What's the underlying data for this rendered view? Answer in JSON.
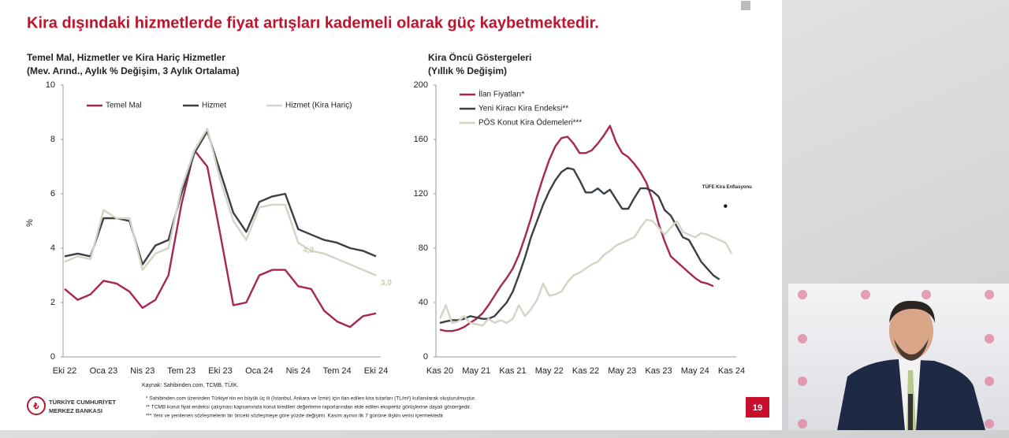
{
  "slide_title": "Kira dışındaki hizmetlerde fiyat artışları kademeli olarak güç kaybetmektedir.",
  "chart_data": [
    {
      "type": "line",
      "title": "Temel Mal, Hizmetler ve Kira Hariç Hizmetler",
      "subtitle": "(Mev. Arınd., Aylık % Değişim, 3 Aylık Ortalama)",
      "ylabel": "%",
      "source": "Kaynak: Sahibinden.com, TCMB, TÜİK.",
      "categories": [
        "Eki 22",
        null,
        null,
        "Oca 23",
        null,
        null,
        "Nis 23",
        null,
        null,
        "Tem 23",
        null,
        null,
        "Eki 23",
        null,
        null,
        "Oca 24",
        null,
        null,
        "Nis 24",
        null,
        null,
        "Tem 24",
        null,
        null,
        "Eki 24"
      ],
      "ylim": [
        0,
        10
      ],
      "yticks": [
        0,
        2,
        4,
        6,
        8,
        10
      ],
      "legend": "top",
      "series": [
        {
          "name": "Temel Mal",
          "color": "#a8274f",
          "values": [
            2.5,
            2.1,
            2.3,
            2.8,
            2.7,
            2.4,
            1.8,
            2.1,
            3.0,
            5.6,
            7.6,
            7.0,
            4.5,
            1.9,
            2.0,
            3.0,
            3.2,
            3.2,
            2.6,
            2.5,
            1.7,
            1.3,
            1.1,
            1.5,
            1.6
          ]
        },
        {
          "name": "Hizmet",
          "color": "#3b4045",
          "values": [
            3.7,
            3.8,
            3.7,
            5.1,
            5.1,
            5.0,
            3.4,
            4.1,
            4.3,
            6.0,
            7.5,
            8.3,
            6.8,
            5.3,
            4.6,
            5.7,
            5.9,
            6.0,
            4.7,
            4.5,
            4.3,
            4.2,
            4.0,
            3.9,
            3.7
          ]
        },
        {
          "name": "Hizmet (Kira Hariç)",
          "color": "#d2d5c4",
          "values": [
            3.5,
            3.7,
            3.6,
            5.4,
            5.1,
            5.1,
            3.2,
            3.8,
            4.0,
            6.2,
            7.6,
            8.4,
            6.5,
            5.0,
            4.3,
            5.5,
            5.6,
            5.6,
            4.2,
            3.9,
            3.8,
            3.6,
            3.4,
            3.2,
            3.0
          ],
          "value_labels": [
            null,
            null,
            null,
            null,
            null,
            null,
            null,
            null,
            null,
            null,
            null,
            null,
            null,
            null,
            null,
            null,
            null,
            null,
            "4,2",
            null,
            null,
            null,
            null,
            null,
            "3,0"
          ]
        }
      ]
    },
    {
      "type": "line",
      "title": "Kira Öncü Göstergeleri",
      "subtitle": "(Yıllık % Değişim)",
      "categories": [
        "Kas 20",
        null,
        null,
        null,
        null,
        null,
        "May 21",
        null,
        null,
        null,
        null,
        null,
        "Kas 21",
        null,
        null,
        null,
        null,
        null,
        "May 22",
        null,
        null,
        null,
        null,
        null,
        "Kas 22",
        null,
        null,
        null,
        null,
        null,
        "May 23",
        null,
        null,
        null,
        null,
        null,
        "Kas 23",
        null,
        null,
        null,
        null,
        null,
        "May 24",
        null,
        null,
        null,
        null,
        null,
        "Kas 24"
      ],
      "ylim": [
        0,
        200
      ],
      "yticks": [
        0,
        40,
        80,
        120,
        160,
        200
      ],
      "legend": "upper left",
      "series": [
        {
          "name": "İlan Fiyatları*",
          "color": "#a8274f",
          "values": [
            20,
            19,
            19,
            20,
            22,
            25,
            28,
            32,
            38,
            45,
            52,
            58,
            65,
            75,
            88,
            102,
            118,
            132,
            145,
            155,
            161,
            162,
            157,
            150,
            150,
            152,
            157,
            163,
            170,
            158,
            150,
            147,
            142,
            136,
            128,
            115,
            98,
            85,
            74,
            70,
            66,
            62,
            58,
            55,
            54,
            52,
            null,
            null,
            null
          ]
        },
        {
          "name": "Yeni Kiracı Kira Endeksi**",
          "color": "#3b4045",
          "values": [
            25,
            26,
            27,
            27,
            28,
            30,
            29,
            28,
            28,
            30,
            35,
            40,
            48,
            60,
            73,
            88,
            100,
            112,
            122,
            130,
            136,
            139,
            138,
            130,
            121,
            121,
            124,
            120,
            123,
            116,
            109,
            109,
            117,
            124,
            124,
            122,
            118,
            108,
            104,
            96,
            88,
            86,
            78,
            70,
            65,
            60,
            57,
            null,
            null
          ]
        },
        {
          "name": "PÖS Konut Kira Ödemeleri***",
          "color": "#d2d5c4",
          "values": [
            28,
            38,
            25,
            26,
            30,
            25,
            24,
            23,
            28,
            25,
            27,
            25,
            28,
            38,
            30,
            35,
            42,
            54,
            45,
            46,
            48,
            55,
            60,
            62,
            65,
            68,
            70,
            75,
            78,
            82,
            84,
            86,
            88,
            95,
            101,
            100,
            95,
            90,
            95,
            100,
            92,
            90,
            88,
            91,
            90,
            88,
            86,
            84,
            76
          ]
        },
        {
          "name": "TÜFE Kira Enflasyonu",
          "color": "#111111",
          "style": "point",
          "values": [
            null,
            null,
            null,
            null,
            null,
            null,
            null,
            null,
            null,
            null,
            null,
            null,
            null,
            null,
            null,
            null,
            null,
            null,
            null,
            null,
            null,
            null,
            null,
            null,
            null,
            null,
            null,
            null,
            null,
            null,
            null,
            null,
            null,
            null,
            null,
            null,
            null,
            null,
            null,
            null,
            null,
            null,
            null,
            null,
            null,
            null,
            null,
            111,
            null
          ]
        }
      ]
    }
  ],
  "footnotes": [
    "* Sahibinden.com üzerinden Türkiye'nin en büyük üç ili (İstanbul, Ankara ve İzmir) için ilan edilen kira tutarları (TL/m²) kullanılarak oluşturulmuştur.",
    "** TCMB konut fiyat endeksi çalışması kapsamında konut kredileri değerleme raporlarından elde edilen ekspertiz görüşlerine dayalı göstergedir.",
    "*** Yeni ve yenilenen sözleşmelerin bir önceki sözleşmeye göre yüzde değişimi. Kasım ayının ilk 7 gününe ilişkin verisi içermektedir."
  ],
  "logo": {
    "line1": "TÜRKİYE CUMHURİYET",
    "line2": "MERKEZ BANKASI"
  },
  "page_number": 19
}
